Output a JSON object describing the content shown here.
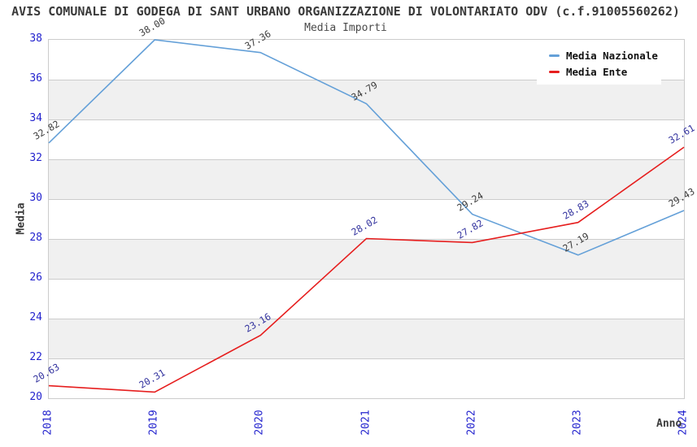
{
  "chart_data": {
    "type": "line",
    "title": "AVIS COMUNALE DI GODEGA DI SANT URBANO ORGANIZZAZIONE DI VOLONTARIATO ODV (c.f.91005560262)",
    "subtitle": "Media Importi",
    "xlabel": "Anno",
    "ylabel": "Media",
    "categories": [
      "2018",
      "2019",
      "2020",
      "2021",
      "2022",
      "2023",
      "2024"
    ],
    "series": [
      {
        "name": "Media Nazionale",
        "color": "#64a0d8",
        "label_color": "#3d3d3d",
        "values": [
          32.82,
          38.0,
          37.36,
          34.79,
          29.24,
          27.19,
          29.43
        ]
      },
      {
        "name": "Media Ente",
        "color": "#e61e1e",
        "label_color": "#32329e",
        "values": [
          20.63,
          20.31,
          23.16,
          28.02,
          27.82,
          28.83,
          32.61
        ]
      }
    ],
    "ylim": [
      20,
      38
    ],
    "ytick_step": 2,
    "grid": true,
    "band_color": "#f0f0f0",
    "gridline_color": "#cccccc",
    "tick_label_color": "#2323ce",
    "legend_position": "top-right",
    "value_label_decimals": 2
  }
}
